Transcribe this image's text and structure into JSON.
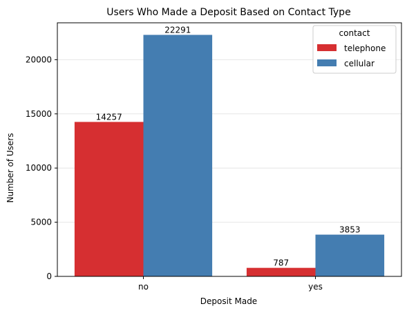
{
  "chart_data": {
    "type": "bar",
    "title": "Users Who Made a Deposit Based on Contact Type",
    "xlabel": "Deposit Made",
    "ylabel": "Number of Users",
    "categories": [
      "no",
      "yes"
    ],
    "series": [
      {
        "name": "telephone",
        "color": "#d62f31",
        "values": [
          14257,
          787
        ]
      },
      {
        "name": "cellular",
        "color": "#447db1",
        "values": [
          22291,
          3853
        ]
      }
    ],
    "ylim": [
      0,
      23405
    ],
    "yticks": [
      0,
      5000,
      10000,
      15000,
      20000
    ],
    "grid": "y",
    "legend": {
      "title": "contact",
      "placement": "top-right"
    }
  }
}
